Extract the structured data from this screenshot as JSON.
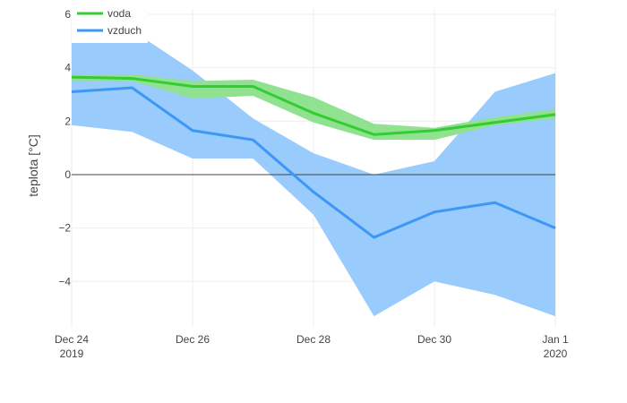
{
  "chart_data": {
    "type": "line",
    "xlabel": "",
    "ylabel": "teplota [°C]",
    "x": [
      "2019-12-24",
      "2019-12-25",
      "2019-12-26",
      "2019-12-27",
      "2019-12-28",
      "2019-12-29",
      "2019-12-30",
      "2019-12-31",
      "2020-01-01"
    ],
    "xlim": [
      "2019-12-24",
      "2020-01-01"
    ],
    "ylim": [
      -5.7,
      6.2
    ],
    "x_ticks": [
      {
        "date": "2019-12-24",
        "line1": "Dec 24",
        "line2": "2019"
      },
      {
        "date": "2019-12-26",
        "line1": "Dec 26",
        "line2": ""
      },
      {
        "date": "2019-12-28",
        "line1": "Dec 28",
        "line2": ""
      },
      {
        "date": "2019-12-30",
        "line1": "Dec 30",
        "line2": ""
      },
      {
        "date": "2020-01-01",
        "line1": "Jan 1",
        "line2": "2020"
      }
    ],
    "y_ticks": [
      {
        "value": 6,
        "label": "6"
      },
      {
        "value": 4,
        "label": "4"
      },
      {
        "value": 2,
        "label": "2"
      },
      {
        "value": 0,
        "label": "0"
      },
      {
        "value": -2,
        "label": "−2"
      },
      {
        "value": -4,
        "label": "−4"
      }
    ],
    "grid": true,
    "legend_position": "top-left",
    "series": [
      {
        "name": "vzduch",
        "color": "#3d97f5",
        "band_color": "#99cbfd",
        "values": [
          3.1,
          3.25,
          1.65,
          1.3,
          -0.65,
          -2.35,
          -1.4,
          -1.05,
          -2.0
        ],
        "lower": [
          1.85,
          1.6,
          0.6,
          0.6,
          -1.5,
          -5.3,
          -4.0,
          -4.5,
          -5.3
        ],
        "upper": [
          5.0,
          5.4,
          3.9,
          2.1,
          0.8,
          0.0,
          0.5,
          3.1,
          3.8
        ]
      },
      {
        "name": "voda",
        "color": "#33cc33",
        "band_color": "#90e190",
        "values": [
          3.65,
          3.6,
          3.3,
          3.3,
          2.3,
          1.5,
          1.65,
          1.95,
          2.25
        ],
        "lower": [
          3.5,
          3.5,
          2.85,
          2.95,
          1.95,
          1.3,
          1.3,
          1.85,
          2.1
        ],
        "upper": [
          3.75,
          3.75,
          3.5,
          3.55,
          2.9,
          1.9,
          1.75,
          2.15,
          2.45
        ]
      }
    ],
    "legend": [
      {
        "label": "voda",
        "color": "#33cc33"
      },
      {
        "label": "vzduch",
        "color": "#3d97f5"
      }
    ]
  }
}
